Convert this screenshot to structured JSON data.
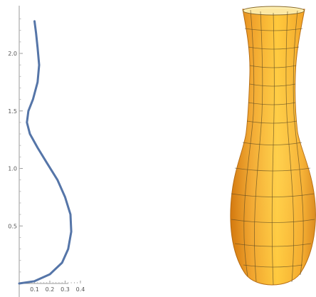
{
  "chart_data": [
    {
      "type": "line",
      "title": "",
      "xlabel": "",
      "ylabel": "",
      "xlim": [
        0,
        0.42
      ],
      "ylim": [
        0,
        2.33
      ],
      "x_ticks": [
        "0.1",
        "0.2",
        "0.3",
        "0.4"
      ],
      "y_ticks": [
        "0.5",
        "1.0",
        "1.5",
        "2.0"
      ],
      "grid": false,
      "series": [
        {
          "color": "#5575a8",
          "x": [
            0.0,
            0.1,
            0.2,
            0.28,
            0.32,
            0.34,
            0.335,
            0.3,
            0.25,
            0.18,
            0.12,
            0.07,
            0.05,
            0.06,
            0.09,
            0.12,
            0.13,
            0.12,
            0.11,
            0.1
          ],
          "y": [
            0.0,
            0.02,
            0.08,
            0.18,
            0.3,
            0.45,
            0.6,
            0.75,
            0.9,
            1.05,
            1.18,
            1.3,
            1.4,
            1.5,
            1.6,
            1.75,
            1.9,
            2.05,
            2.18,
            2.28
          ]
        }
      ]
    },
    {
      "type": "surface",
      "description": "",
      "colors": {
        "body": "#f5a623",
        "highlight": "#ffd24a",
        "shadow": "#d47a10",
        "mesh": "#5b4a22"
      }
    }
  ]
}
